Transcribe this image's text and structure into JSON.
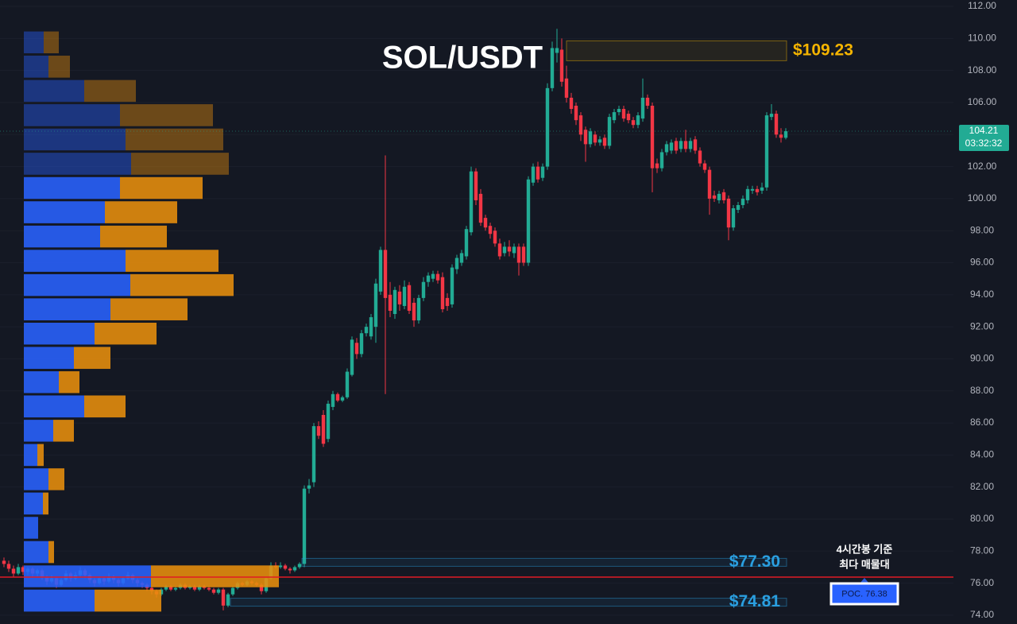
{
  "chart_data": {
    "type": "candlestick",
    "title": "SOL/USDT",
    "up_color": "#22ab94",
    "down_color": "#f23645",
    "ylim": [
      73.45,
      112.4
    ],
    "yticks": [
      {
        "value": 74,
        "label": "74.00"
      },
      {
        "value": 76,
        "label": "76.00"
      },
      {
        "value": 78,
        "label": "78.00"
      },
      {
        "value": 80,
        "label": "80.00"
      },
      {
        "value": 82,
        "label": "82.00"
      },
      {
        "value": 84,
        "label": "84.00"
      },
      {
        "value": 86,
        "label": "86.00"
      },
      {
        "value": 88,
        "label": "88.00"
      },
      {
        "value": 90,
        "label": "90.00"
      },
      {
        "value": 92,
        "label": "92.00"
      },
      {
        "value": 94,
        "label": "94.00"
      },
      {
        "value": 96,
        "label": "96.00"
      },
      {
        "value": 98,
        "label": "98.00"
      },
      {
        "value": 100,
        "label": "100.00"
      },
      {
        "value": 102,
        "label": "102.00"
      },
      {
        "value": 104,
        "label": "104.00"
      },
      {
        "value": 106,
        "label": "106.00"
      },
      {
        "value": 108,
        "label": "108.00"
      },
      {
        "value": 110,
        "label": "110.00"
      },
      {
        "value": 112,
        "label": "112.00"
      }
    ],
    "grid": true,
    "candles": [
      [
        77.4,
        77.6,
        77.0,
        77.2
      ],
      [
        77.2,
        77.4,
        76.7,
        76.9
      ],
      [
        76.9,
        77.1,
        76.4,
        76.6
      ],
      [
        76.6,
        77.2,
        76.5,
        77.0
      ],
      [
        77.0,
        77.1,
        76.5,
        76.7
      ],
      [
        76.7,
        77.0,
        76.5,
        76.9
      ],
      [
        76.9,
        77.0,
        76.4,
        76.6
      ],
      [
        76.6,
        76.9,
        76.4,
        76.8
      ],
      [
        76.8,
        76.9,
        76.2,
        76.4
      ],
      [
        76.4,
        76.5,
        75.9,
        76.1
      ],
      [
        76.1,
        76.5,
        76.0,
        76.3
      ],
      [
        76.3,
        76.4,
        75.7,
        75.9
      ],
      [
        75.9,
        76.3,
        75.8,
        76.2
      ],
      [
        76.2,
        76.8,
        76.1,
        76.6
      ],
      [
        76.6,
        76.7,
        76.1,
        76.3
      ],
      [
        76.3,
        76.7,
        76.2,
        76.5
      ],
      [
        76.5,
        77.0,
        76.4,
        76.8
      ],
      [
        76.8,
        76.9,
        76.3,
        76.5
      ],
      [
        76.5,
        76.6,
        76.0,
        76.2
      ],
      [
        76.2,
        76.3,
        75.8,
        76.0
      ],
      [
        76.0,
        76.4,
        75.9,
        76.3
      ],
      [
        76.3,
        76.4,
        75.9,
        76.1
      ],
      [
        76.1,
        76.6,
        76.0,
        76.4
      ],
      [
        76.4,
        76.5,
        76.0,
        76.2
      ],
      [
        76.2,
        76.3,
        75.8,
        76.0
      ],
      [
        76.0,
        76.4,
        75.9,
        76.3
      ],
      [
        76.3,
        76.7,
        76.2,
        76.5
      ],
      [
        76.5,
        76.6,
        76.0,
        76.2
      ],
      [
        76.2,
        76.3,
        75.8,
        76.0
      ],
      [
        76.0,
        76.1,
        75.7,
        75.9
      ],
      [
        75.9,
        76.0,
        75.5,
        75.7
      ],
      [
        75.7,
        75.8,
        75.3,
        75.5
      ],
      [
        75.5,
        75.6,
        75.1,
        75.3
      ],
      [
        75.3,
        75.7,
        75.2,
        75.6
      ],
      [
        75.6,
        75.9,
        75.5,
        75.8
      ],
      [
        75.8,
        75.9,
        75.5,
        75.6
      ],
      [
        75.6,
        75.8,
        75.5,
        75.7
      ],
      [
        75.7,
        76.0,
        75.6,
        75.9
      ],
      [
        75.9,
        76.0,
        75.6,
        75.7
      ],
      [
        75.7,
        75.9,
        75.6,
        75.8
      ],
      [
        75.8,
        75.9,
        75.5,
        75.6
      ],
      [
        75.6,
        75.9,
        75.5,
        75.8
      ],
      [
        75.8,
        75.9,
        75.6,
        75.7
      ],
      [
        75.7,
        75.8,
        75.5,
        75.6
      ],
      [
        75.6,
        75.7,
        75.3,
        75.4
      ],
      [
        75.4,
        75.7,
        75.3,
        75.6
      ],
      [
        75.6,
        75.7,
        74.3,
        74.6
      ],
      [
        74.6,
        75.4,
        74.5,
        75.3
      ],
      [
        75.3,
        75.8,
        75.2,
        75.7
      ],
      [
        75.7,
        76.1,
        75.6,
        76.0
      ],
      [
        76.0,
        76.1,
        75.8,
        75.9
      ],
      [
        75.9,
        76.2,
        75.8,
        76.1
      ],
      [
        76.1,
        76.2,
        75.9,
        76.0
      ],
      [
        76.0,
        76.1,
        75.8,
        75.9
      ],
      [
        75.9,
        76.0,
        75.3,
        75.5
      ],
      [
        75.5,
        76.4,
        75.4,
        76.3
      ],
      [
        76.3,
        77.3,
        76.2,
        77.1
      ],
      [
        77.1,
        77.3,
        76.9,
        77.0
      ],
      [
        77.0,
        77.3,
        76.9,
        77.1
      ],
      [
        77.1,
        77.2,
        76.8,
        76.9
      ],
      [
        76.9,
        77.0,
        76.6,
        76.8
      ],
      [
        76.8,
        77.1,
        76.7,
        77.0
      ],
      [
        77.0,
        77.3,
        76.9,
        77.2
      ],
      [
        77.2,
        82.1,
        77.0,
        81.9
      ],
      [
        81.9,
        82.5,
        81.6,
        82.1
      ],
      [
        82.3,
        86.0,
        82.0,
        85.8
      ],
      [
        85.8,
        86.1,
        85.0,
        85.2
      ],
      [
        86.5,
        86.8,
        84.5,
        84.7
      ],
      [
        85.0,
        87.4,
        84.8,
        87.2
      ],
      [
        87.0,
        88.0,
        86.8,
        87.8
      ],
      [
        87.8,
        87.9,
        87.3,
        87.4
      ],
      [
        87.4,
        87.7,
        87.3,
        87.6
      ],
      [
        87.6,
        89.4,
        87.5,
        89.2
      ],
      [
        89.0,
        91.4,
        88.9,
        91.2
      ],
      [
        91.0,
        91.3,
        90.0,
        90.3
      ],
      [
        90.3,
        91.8,
        90.1,
        91.6
      ],
      [
        91.6,
        92.2,
        91.4,
        92.0
      ],
      [
        91.4,
        92.8,
        91.2,
        92.6
      ],
      [
        92.0,
        95.0,
        91.0,
        94.7
      ],
      [
        94.2,
        97.0,
        94.0,
        96.8
      ],
      [
        96.8,
        102.7,
        87.8,
        93.8
      ],
      [
        94.0,
        94.8,
        92.6,
        93.0
      ],
      [
        92.8,
        94.5,
        92.5,
        94.3
      ],
      [
        94.2,
        94.6,
        93.0,
        93.4
      ],
      [
        93.3,
        94.9,
        93.1,
        94.5
      ],
      [
        94.6,
        94.8,
        92.8,
        93.0
      ],
      [
        93.5,
        93.8,
        92.0,
        92.4
      ],
      [
        92.4,
        94.0,
        92.2,
        93.8
      ],
      [
        93.8,
        95.1,
        93.6,
        94.8
      ],
      [
        94.8,
        95.4,
        94.5,
        95.2
      ],
      [
        95.0,
        95.5,
        94.8,
        95.3
      ],
      [
        95.3,
        95.5,
        94.7,
        94.9
      ],
      [
        95.1,
        95.4,
        92.9,
        93.1
      ],
      [
        93.8,
        94.1,
        93.0,
        93.3
      ],
      [
        93.4,
        95.9,
        93.2,
        95.7
      ],
      [
        95.6,
        96.5,
        95.3,
        96.3
      ],
      [
        96.0,
        96.8,
        95.8,
        96.6
      ],
      [
        96.4,
        98.3,
        96.2,
        98.1
      ],
      [
        97.9,
        102.0,
        97.7,
        101.7
      ],
      [
        101.7,
        101.9,
        99.6,
        99.9
      ],
      [
        100.3,
        100.6,
        98.3,
        98.5
      ],
      [
        98.8,
        99.0,
        98.0,
        98.2
      ],
      [
        98.3,
        98.5,
        97.5,
        97.8
      ],
      [
        98.0,
        98.2,
        97.0,
        97.2
      ],
      [
        97.2,
        97.5,
        96.2,
        96.4
      ],
      [
        96.6,
        97.3,
        96.4,
        97.0
      ],
      [
        97.0,
        97.4,
        96.4,
        96.7
      ],
      [
        96.6,
        97.2,
        96.3,
        97.0
      ],
      [
        97.0,
        97.2,
        95.2,
        96.0
      ],
      [
        97.0,
        97.2,
        95.8,
        96.0
      ],
      [
        96.0,
        101.4,
        95.8,
        101.2
      ],
      [
        101.0,
        102.2,
        100.8,
        102.0
      ],
      [
        102.0,
        102.3,
        101.0,
        101.2
      ],
      [
        101.3,
        102.2,
        101.1,
        102.0
      ],
      [
        102.0,
        107.2,
        101.8,
        106.9
      ],
      [
        106.9,
        109.8,
        106.7,
        109.4
      ],
      [
        109.1,
        110.6,
        108.5,
        109.4
      ],
      [
        109.3,
        110.0,
        107.0,
        107.3
      ],
      [
        107.5,
        108.3,
        106.0,
        106.3
      ],
      [
        106.3,
        106.6,
        105.3,
        105.6
      ],
      [
        105.8,
        106.0,
        104.6,
        104.9
      ],
      [
        105.2,
        105.4,
        103.6,
        104.0
      ],
      [
        104.3,
        104.5,
        102.3,
        103.4
      ],
      [
        103.4,
        104.4,
        103.2,
        104.2
      ],
      [
        104.0,
        104.2,
        103.3,
        103.5
      ],
      [
        103.5,
        103.9,
        103.3,
        103.7
      ],
      [
        103.8,
        104.0,
        103.1,
        103.3
      ],
      [
        103.3,
        105.3,
        103.1,
        105.1
      ],
      [
        104.9,
        105.6,
        104.7,
        105.4
      ],
      [
        105.4,
        105.8,
        105.2,
        105.6
      ],
      [
        105.6,
        105.8,
        104.8,
        105.0
      ],
      [
        105.3,
        105.5,
        104.7,
        104.9
      ],
      [
        104.9,
        105.1,
        104.4,
        104.6
      ],
      [
        104.6,
        105.4,
        104.4,
        105.2
      ],
      [
        105.0,
        107.5,
        104.8,
        106.3
      ],
      [
        106.3,
        106.5,
        105.6,
        105.8
      ],
      [
        105.8,
        106.0,
        100.4,
        101.9
      ],
      [
        102.2,
        102.5,
        101.6,
        101.9
      ],
      [
        101.9,
        103.1,
        101.7,
        102.9
      ],
      [
        102.9,
        103.6,
        102.7,
        103.4
      ],
      [
        103.0,
        103.7,
        102.8,
        103.5
      ],
      [
        103.6,
        103.8,
        102.8,
        103.0
      ],
      [
        103.1,
        103.8,
        102.9,
        103.6
      ],
      [
        103.6,
        104.3,
        102.9,
        103.1
      ],
      [
        103.1,
        103.8,
        102.9,
        103.6
      ],
      [
        103.7,
        103.9,
        102.8,
        103.0
      ],
      [
        103.0,
        103.2,
        102.0,
        102.2
      ],
      [
        102.2,
        102.4,
        101.6,
        101.8
      ],
      [
        101.8,
        102.0,
        99.0,
        100.0
      ],
      [
        100.2,
        100.5,
        99.8,
        100.0
      ],
      [
        99.9,
        100.5,
        99.7,
        100.3
      ],
      [
        100.4,
        100.6,
        99.7,
        99.9
      ],
      [
        100.0,
        100.2,
        97.4,
        98.2
      ],
      [
        98.2,
        99.6,
        98.0,
        99.4
      ],
      [
        99.3,
        99.8,
        99.1,
        99.6
      ],
      [
        99.6,
        100.2,
        99.4,
        100.0
      ],
      [
        99.9,
        100.8,
        99.7,
        100.6
      ],
      [
        100.5,
        100.8,
        100.3,
        100.6
      ],
      [
        100.6,
        100.8,
        100.2,
        100.4
      ],
      [
        100.5,
        101.0,
        100.3,
        100.7
      ],
      [
        100.7,
        105.4,
        100.5,
        105.2
      ],
      [
        105.1,
        105.9,
        104.9,
        105.3
      ],
      [
        105.3,
        105.5,
        103.8,
        104.0
      ],
      [
        104.0,
        104.4,
        103.5,
        103.8
      ],
      [
        103.8,
        104.4,
        103.7,
        104.21
      ]
    ],
    "profile": {
      "bins": [
        74.15,
        75.67,
        77.18,
        78.7,
        80.21,
        81.73,
        83.24,
        84.76,
        86.27,
        87.79,
        89.3,
        90.82,
        92.33,
        93.85,
        95.36,
        96.88,
        98.39,
        99.91,
        101.42,
        102.94,
        104.45,
        105.97,
        107.48,
        109.0,
        110.51
      ],
      "buy": [
        89,
        160,
        31,
        18,
        24,
        31,
        17,
        37,
        76,
        44,
        63,
        89,
        109,
        134,
        128,
        96,
        102,
        121,
        135,
        128,
        121,
        76,
        31,
        25
      ],
      "sell": [
        84,
        161,
        7,
        0,
        7,
        20,
        8,
        26,
        52,
        26,
        46,
        78,
        97,
        130,
        117,
        84,
        91,
        104,
        123,
        123,
        117,
        65,
        27,
        19
      ],
      "buy_color": "#2962ff",
      "sell_color": "#e88e0c",
      "value_area": [
        74.15,
        101.42
      ]
    },
    "zones": [
      {
        "value": 109.23,
        "label": "$109.23",
        "color": "#f5b400"
      },
      {
        "value": 77.3,
        "label": "$77.30",
        "color": "#2a9fe0"
      },
      {
        "value": 74.81,
        "label": "$74.81",
        "color": "#2a9fe0"
      }
    ],
    "poc": {
      "value": 76.38,
      "label": "POC. 76.38",
      "color": "#e01b24"
    },
    "poc_note": [
      "4시간봉 기준",
      "최다 매물대"
    ],
    "last_price": 104.21,
    "countdown": "03:32:32"
  }
}
